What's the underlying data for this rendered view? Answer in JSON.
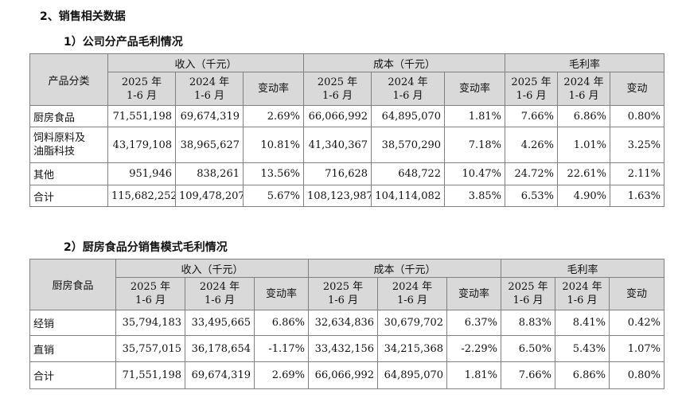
{
  "section_title": "2、销售相关数据",
  "t1": {
    "title": "1）公司分产品毛利情况",
    "row_header": "产品分类",
    "group_headers": [
      "收入（千元）",
      "成本（千元）",
      "毛利率"
    ],
    "sub_headers": [
      {
        "line1": "2025 年",
        "line2": "1-6 月"
      },
      {
        "line1": "2024 年",
        "line2": "1-6 月"
      },
      {
        "line1": "变动率",
        "line2": ""
      },
      {
        "line1": "2025 年",
        "line2": "1-6 月"
      },
      {
        "line1": "2024 年",
        "line2": "1-6 月"
      },
      {
        "line1": "变动率",
        "line2": ""
      },
      {
        "line1": "2025 年",
        "line2": "1-6 月"
      },
      {
        "line1": "2024 年",
        "line2": "1-6 月"
      },
      {
        "line1": "变动",
        "line2": ""
      }
    ],
    "rows": [
      {
        "label": "厨房食品",
        "label2": "",
        "cells": [
          "71,551,198",
          "69,674,319",
          "2.69%",
          "66,066,992",
          "64,895,070",
          "1.81%",
          "7.66%",
          "6.86%",
          "0.80%"
        ]
      },
      {
        "label": "饲料原料及",
        "label2": "油脂科技",
        "cells": [
          "43,179,108",
          "38,965,627",
          "10.81%",
          "41,340,367",
          "38,570,290",
          "7.18%",
          "4.26%",
          "1.01%",
          "3.25%"
        ]
      },
      {
        "label": "其他",
        "label2": "",
        "cells": [
          "951,946",
          "838,261",
          "13.56%",
          "716,628",
          "648,722",
          "10.47%",
          "24.72%",
          "22.61%",
          "2.11%"
        ]
      },
      {
        "label": "合计",
        "label2": "",
        "cells": [
          "115,682,252",
          "109,478,207",
          "5.67%",
          "108,123,987",
          "104,114,082",
          "3.85%",
          "6.53%",
          "4.90%",
          "1.63%"
        ]
      }
    ]
  },
  "t2": {
    "title": "2）厨房食品分销售模式毛利情况",
    "row_header": "厨房食品",
    "group_headers": [
      "收入（千元）",
      "成本（千元）",
      "毛利率"
    ],
    "sub_headers": [
      {
        "line1": "2025 年",
        "line2": "1-6 月"
      },
      {
        "line1": "2024 年",
        "line2": "1-6 月"
      },
      {
        "line1": "变动率",
        "line2": ""
      },
      {
        "line1": "2025 年",
        "line2": "1-6 月"
      },
      {
        "line1": "2024 年",
        "line2": "1-6 月"
      },
      {
        "line1": "变动率",
        "line2": ""
      },
      {
        "line1": "2025 年",
        "line2": "1-6 月"
      },
      {
        "line1": "2024 年",
        "line2": "1-6 月"
      },
      {
        "line1": "变动",
        "line2": ""
      }
    ],
    "rows": [
      {
        "label": "经销",
        "cells": [
          "35,794,183",
          "33,495,665",
          "6.86%",
          "32,634,836",
          "30,679,702",
          "6.37%",
          "8.83%",
          "8.41%",
          "0.42%"
        ]
      },
      {
        "label": "直销",
        "cells": [
          "35,757,015",
          "36,178,654",
          "-1.17%",
          "33,432,156",
          "34,215,368",
          "-2.29%",
          "6.50%",
          "5.43%",
          "1.07%"
        ]
      },
      {
        "label": "合计",
        "cells": [
          "71,551,198",
          "69,674,319",
          "2.69%",
          "66,066,992",
          "64,895,070",
          "1.81%",
          "7.66%",
          "6.86%",
          "0.80%"
        ]
      }
    ]
  }
}
